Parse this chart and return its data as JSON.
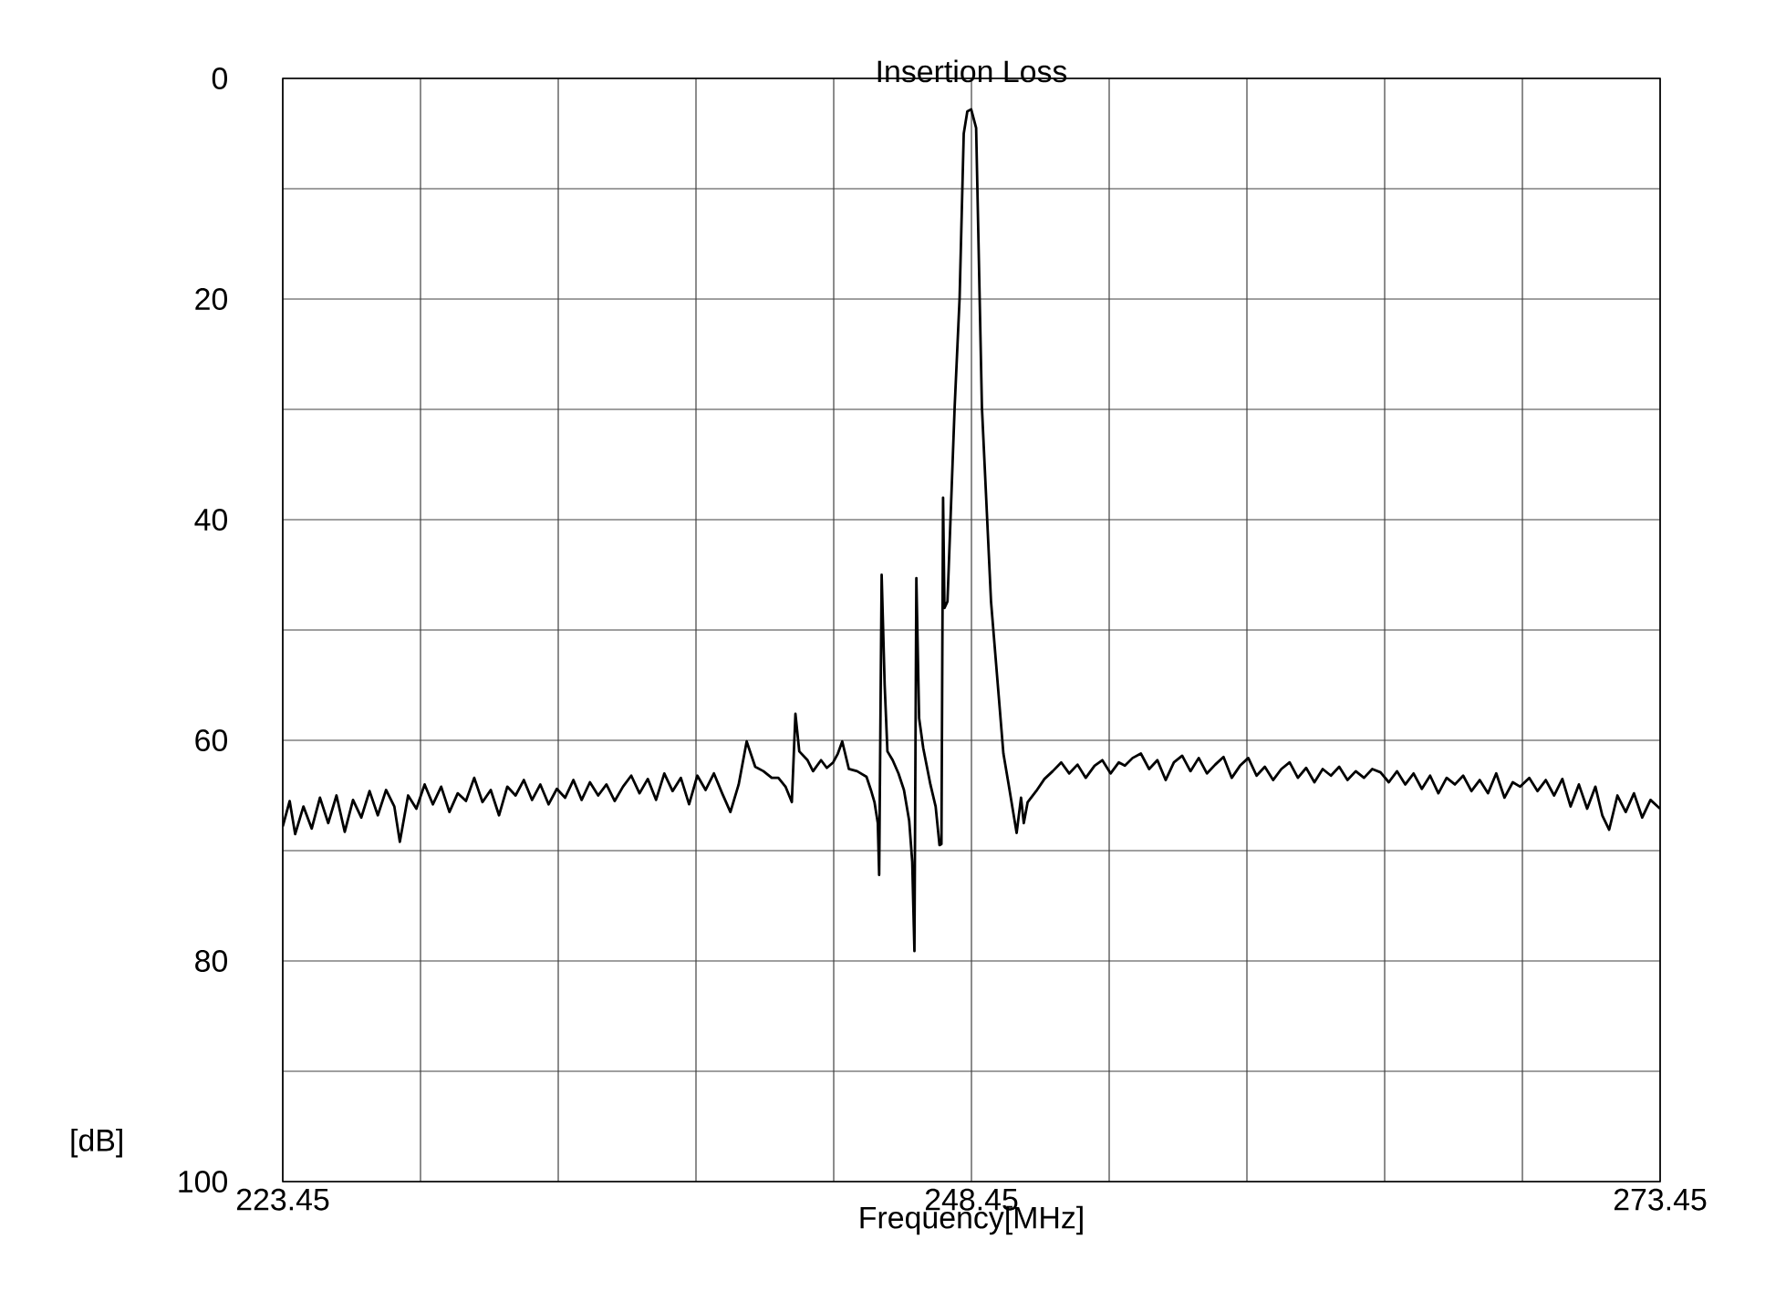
{
  "chart_data": {
    "type": "line",
    "title": "Insertion Loss",
    "xlabel": "Frequency[MHz]",
    "ylabel": "[dB]",
    "x": [
      223.45,
      223.7,
      223.9,
      224.2,
      224.5,
      224.8,
      225.1,
      225.4,
      225.7,
      226.0,
      226.3,
      226.6,
      226.9,
      227.2,
      227.5,
      227.7,
      228.0,
      228.3,
      228.6,
      228.9,
      229.2,
      229.5,
      229.8,
      230.1,
      230.4,
      230.7,
      231.0,
      231.3,
      231.6,
      231.9,
      232.2,
      232.5,
      232.8,
      233.1,
      233.4,
      233.7,
      234.0,
      234.3,
      234.6,
      234.9,
      235.2,
      235.5,
      235.8,
      236.1,
      236.4,
      236.7,
      237.0,
      237.3,
      237.6,
      237.9,
      238.2,
      238.5,
      238.8,
      239.1,
      239.4,
      239.7,
      240.0,
      240.29,
      240.6,
      240.9,
      241.2,
      241.44,
      241.7,
      241.93,
      242.06,
      242.2,
      242.5,
      242.7,
      242.99,
      243.2,
      243.43,
      243.6,
      243.76,
      244.0,
      244.3,
      244.64,
      244.8,
      244.93,
      245.05,
      245.1,
      245.19,
      245.3,
      245.4,
      245.59,
      245.8,
      246.0,
      246.19,
      246.3,
      246.38,
      246.45,
      246.55,
      246.7,
      246.96,
      247.15,
      247.29,
      247.36,
      247.42,
      247.47,
      247.58,
      247.84,
      248.02,
      248.17,
      248.3,
      248.44,
      248.62,
      248.83,
      249.16,
      249.61,
      249.8,
      250.09,
      250.25,
      250.35,
      250.49,
      250.8,
      251.1,
      251.4,
      251.71,
      252.0,
      252.3,
      252.6,
      252.92,
      253.2,
      253.5,
      253.8,
      254.02,
      254.3,
      254.6,
      254.9,
      255.2,
      255.5,
      255.8,
      256.1,
      256.4,
      256.7,
      257.0,
      257.3,
      257.6,
      257.9,
      258.2,
      258.5,
      258.8,
      259.1,
      259.4,
      259.7,
      260.0,
      260.3,
      260.6,
      260.9,
      261.2,
      261.5,
      261.8,
      262.1,
      262.4,
      262.7,
      263.0,
      263.3,
      263.6,
      263.9,
      264.2,
      264.5,
      264.8,
      265.1,
      265.4,
      265.7,
      266.0,
      266.3,
      266.6,
      266.9,
      267.2,
      267.5,
      267.8,
      268.1,
      268.37,
      268.7,
      269.0,
      269.3,
      269.6,
      269.9,
      270.2,
      270.5,
      270.8,
      271.1,
      271.35,
      271.6,
      271.9,
      272.2,
      272.5,
      272.8,
      273.1,
      273.45
    ],
    "series": [
      {
        "color": "#000000",
        "values": [
          67.8,
          65.5,
          68.5,
          66.0,
          68.0,
          65.2,
          67.5,
          65.0,
          68.3,
          65.4,
          67.0,
          64.6,
          66.8,
          64.5,
          66.0,
          69.2,
          65.0,
          66.2,
          64.0,
          65.8,
          64.2,
          66.5,
          64.8,
          65.5,
          63.4,
          65.6,
          64.5,
          66.8,
          64.2,
          65.0,
          63.6,
          65.4,
          64.0,
          65.8,
          64.4,
          65.2,
          63.6,
          65.4,
          63.8,
          65.0,
          64.0,
          65.5,
          64.2,
          63.2,
          64.8,
          63.5,
          65.4,
          63.0,
          64.6,
          63.4,
          65.8,
          63.2,
          64.5,
          63.0,
          64.8,
          66.5,
          64.0,
          60.1,
          62.4,
          62.8,
          63.4,
          63.4,
          64.2,
          65.6,
          57.6,
          61.0,
          61.8,
          62.8,
          61.8,
          62.5,
          62.0,
          61.2,
          60.1,
          62.6,
          62.8,
          63.3,
          64.5,
          65.6,
          67.5,
          72.2,
          45.0,
          55.0,
          61.0,
          61.8,
          63.0,
          64.5,
          67.3,
          71.0,
          79.1,
          45.3,
          58.0,
          60.7,
          64.0,
          66.0,
          69.5,
          69.4,
          38.0,
          48.0,
          47.4,
          29.8,
          19.9,
          5.0,
          3.0,
          2.8,
          4.5,
          29.8,
          47.4,
          61.2,
          64.0,
          68.4,
          65.2,
          67.5,
          65.6,
          64.6,
          63.5,
          62.8,
          62.0,
          63.0,
          62.2,
          63.4,
          62.3,
          61.8,
          63.0,
          62.0,
          62.3,
          61.6,
          61.2,
          62.6,
          61.8,
          63.6,
          62.0,
          61.4,
          62.8,
          61.6,
          63.0,
          62.2,
          61.5,
          63.4,
          62.3,
          61.6,
          63.2,
          62.4,
          63.6,
          62.6,
          62.0,
          63.4,
          62.5,
          63.8,
          62.6,
          63.2,
          62.4,
          63.6,
          62.8,
          63.4,
          62.6,
          62.9,
          63.8,
          62.8,
          64.0,
          63.0,
          64.4,
          63.2,
          64.8,
          63.4,
          64.0,
          63.2,
          64.6,
          63.6,
          64.8,
          63.0,
          65.2,
          63.8,
          64.2,
          63.4,
          64.6,
          63.6,
          65.0,
          63.5,
          66.0,
          64.0,
          66.2,
          64.2,
          66.8,
          68.1,
          65.0,
          66.5,
          64.8,
          67.0,
          65.4,
          66.2
        ]
      }
    ],
    "xlim": [
      223.45,
      273.45
    ],
    "ylim": [
      100,
      0
    ],
    "xticks": [
      223.45,
      {
        "value": 228.45,
        "label": null
      },
      {
        "value": 233.45,
        "label": null
      },
      {
        "value": 238.45,
        "label": null
      },
      {
        "value": 243.45,
        "label": null
      },
      248.45,
      {
        "value": 253.45,
        "label": null
      },
      {
        "value": 258.45,
        "label": null
      },
      {
        "value": 263.45,
        "label": null
      },
      {
        "value": 268.45,
        "label": null
      },
      273.45
    ],
    "yticks": [
      0,
      {
        "value": 10,
        "label": null
      },
      20,
      {
        "value": 30,
        "label": null
      },
      40,
      {
        "value": 50,
        "label": null
      },
      60,
      {
        "value": 70,
        "label": null
      },
      80,
      {
        "value": 90,
        "label": null
      },
      100
    ],
    "grid": true
  }
}
